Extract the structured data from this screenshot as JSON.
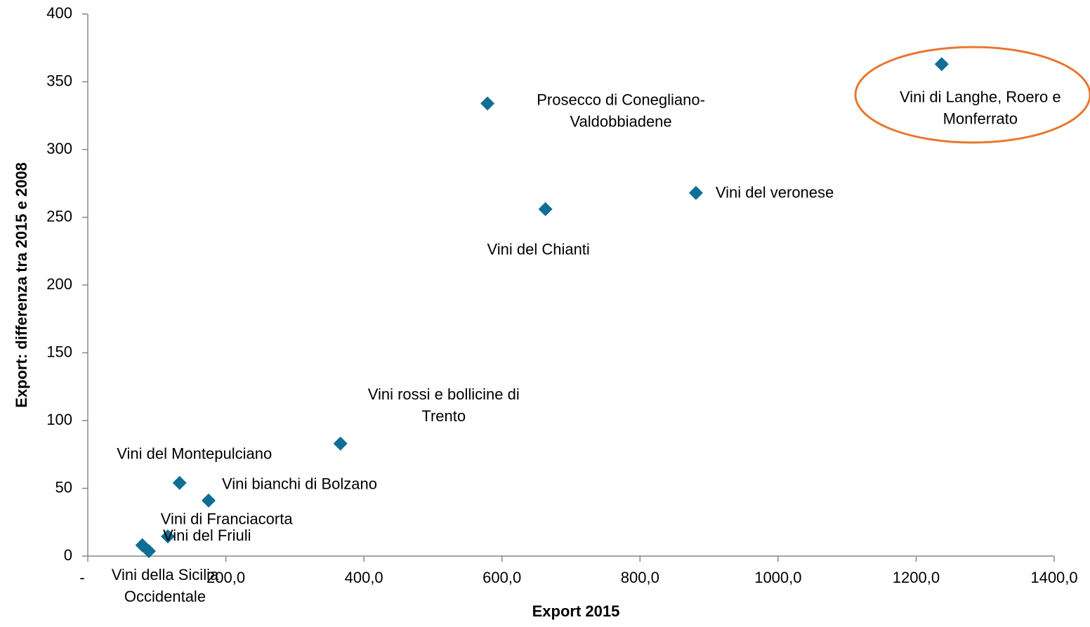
{
  "chart_data": {
    "type": "scatter",
    "xlabel": "Export 2015",
    "ylabel": "Export: differenza tra 2015 e 2008",
    "xlim": [
      0,
      1400
    ],
    "xticks": [
      {
        "value": 0,
        "label": "-"
      },
      {
        "value": 200,
        "label": "200,0"
      },
      {
        "value": 400,
        "label": "400,0"
      },
      {
        "value": 600,
        "label": "600,0"
      },
      {
        "value": 800,
        "label": "800,0"
      },
      {
        "value": 1000,
        "label": "1000,0"
      },
      {
        "value": 1200,
        "label": "1200,0"
      },
      {
        "value": 1400,
        "label": "1400,0"
      }
    ],
    "ylim": [
      0,
      400
    ],
    "yticks": [
      0,
      50,
      100,
      150,
      200,
      250,
      300,
      350,
      400
    ],
    "grid": false,
    "series": [
      {
        "color": "#0f6e96",
        "x": [
          1237,
          579,
          881,
          663,
          366,
          133,
          175,
          79,
          116,
          88.5
        ],
        "values": [
          363,
          334,
          268,
          256,
          83,
          54,
          41,
          8,
          14.5,
          3.6
        ],
        "labels": [
          "Vini di Langhe, Roero e\nMonferrato",
          "Prosecco di Conegliano-\nValdobbiadene",
          "Vini del veronese",
          "Vini del Chianti",
          "Vini rossi e bollicine di\nTrento",
          "Vini del Montepulciano",
          "Vini bianchi di Bolzano",
          "Vini di Franciacorta",
          "Vini del Friuli",
          "Vini della Sicilia\nOccidentale"
        ]
      }
    ]
  }
}
